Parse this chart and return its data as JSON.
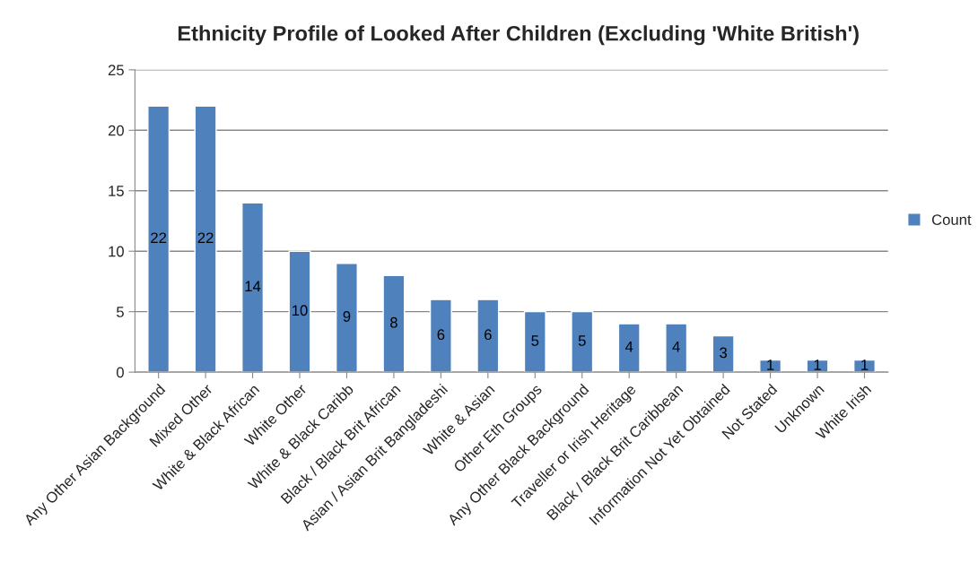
{
  "chart_data": {
    "type": "bar",
    "title": "Ethnicity Profile of Looked After Children (Excluding 'White British')",
    "categories": [
      "Any Other Asian Background",
      "Mixed Other",
      "White & Black African",
      "White Other",
      "White & Black Caribb",
      "Black / Black Brit African",
      "Asian / Asian Brit Bangladeshi",
      "White & Asian",
      "Other Eth Groups",
      "Any Other Black Background",
      "Traveller or Irish Heritage",
      "Black / Black Brit Caribbean",
      "Information Not Yet Obtained",
      "Not Stated",
      "Unknown",
      "White Irish"
    ],
    "series": [
      {
        "name": "Count",
        "color": "#4f81bd",
        "values": [
          22,
          22,
          14,
          10,
          9,
          8,
          6,
          6,
          5,
          5,
          4,
          4,
          3,
          1,
          1,
          1
        ]
      }
    ],
    "ylim": [
      0,
      25
    ],
    "yticks": [
      0,
      5,
      10,
      15,
      20,
      25
    ],
    "grid": "y",
    "legend": "right",
    "data_labels": true
  }
}
